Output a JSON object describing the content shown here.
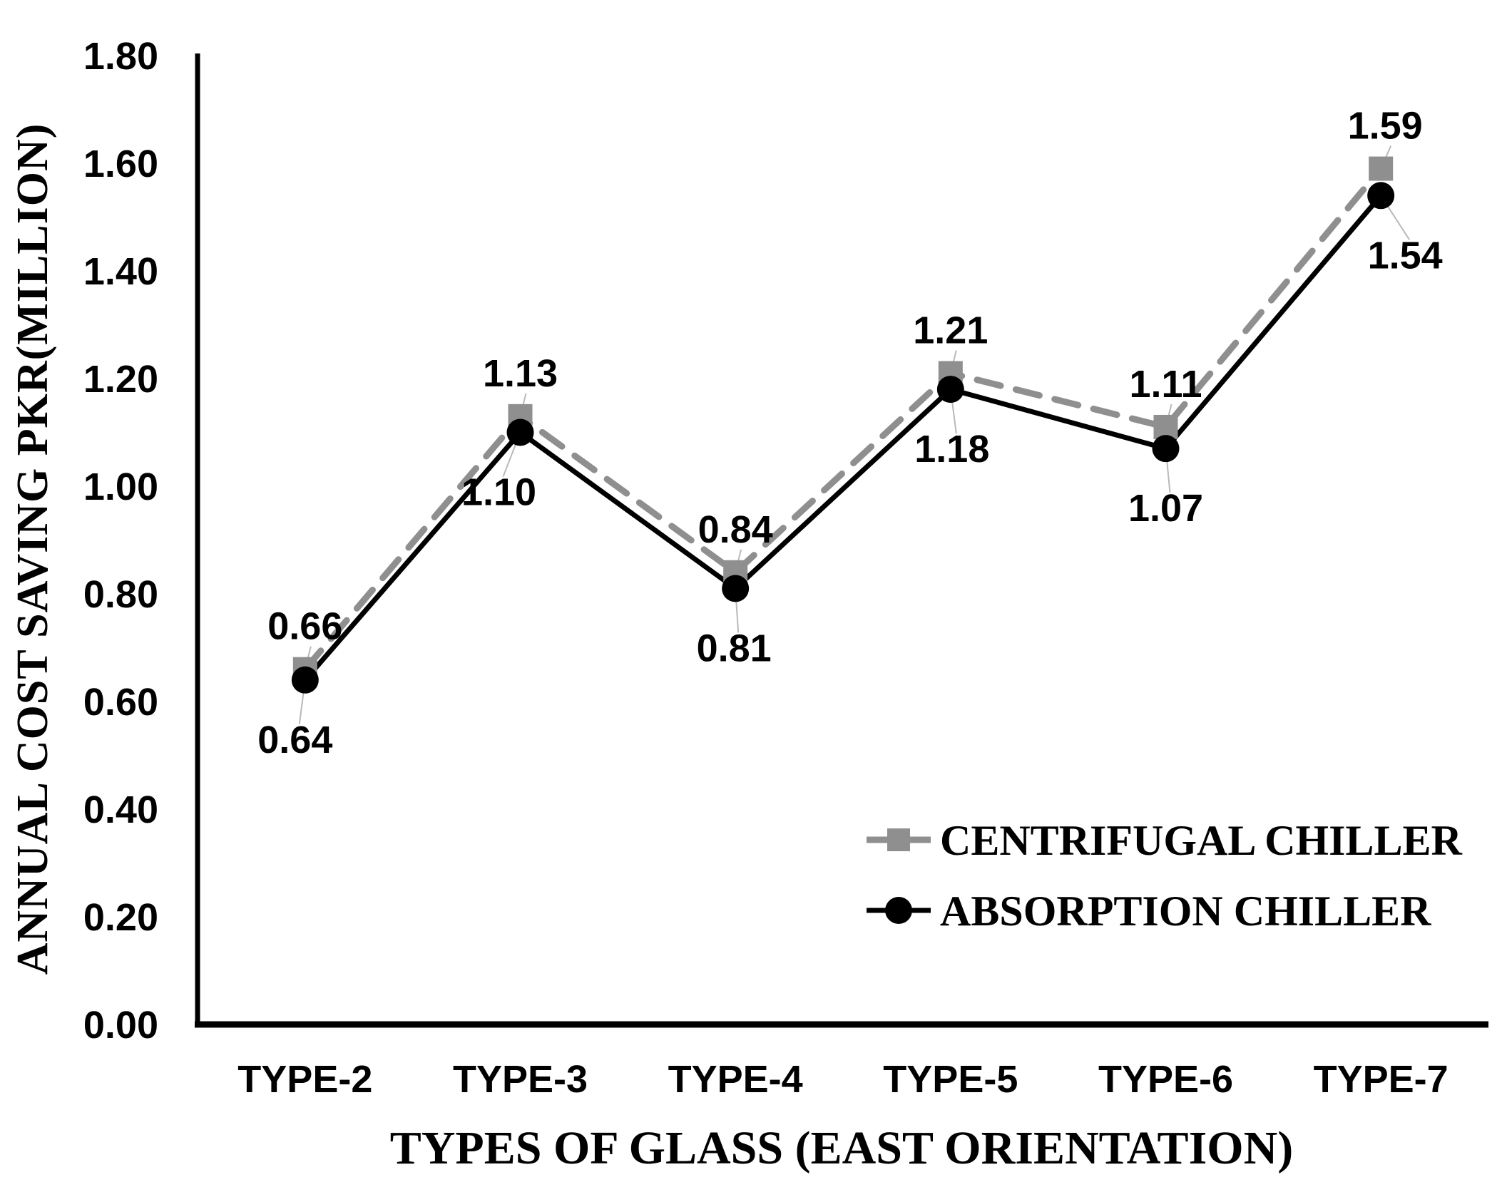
{
  "figure": {
    "background": "#ffffff",
    "axis_color": "#000000",
    "leader_line_color": "#b9b9b9"
  },
  "chart_data": {
    "type": "line",
    "title": "",
    "xlabel": "TYPES OF GLASS (EAST ORIENTATION)",
    "ylabel": "ANNUAL COST SAVING PKR(MILLION)",
    "categories": [
      "TYPE-2",
      "TYPE-3",
      "TYPE-4",
      "TYPE-5",
      "TYPE-6",
      "TYPE-7"
    ],
    "series": [
      {
        "name": "CENTRIFUGAL CHILLER",
        "values": [
          0.66,
          1.13,
          0.84,
          1.21,
          1.11,
          1.59
        ],
        "color": "#8f8f8f",
        "line_style": "dashed",
        "marker": "square",
        "label_position": "above"
      },
      {
        "name": "ABSORPTION CHILLER",
        "values": [
          0.64,
          1.1,
          0.81,
          1.18,
          1.07,
          1.54
        ],
        "color": "#000000",
        "line_style": "solid",
        "marker": "circle",
        "label_position": "below"
      }
    ],
    "ylim": [
      0.0,
      1.8
    ],
    "ytick_step": 0.2,
    "ytick_labels": [
      "0.00",
      "0.20",
      "0.40",
      "0.60",
      "0.80",
      "1.00",
      "1.20",
      "1.40",
      "1.60",
      "1.80"
    ],
    "label_format_decimals": 2,
    "grid": false,
    "data_labels_shown": true,
    "legend_position": "inside-lower-right"
  }
}
